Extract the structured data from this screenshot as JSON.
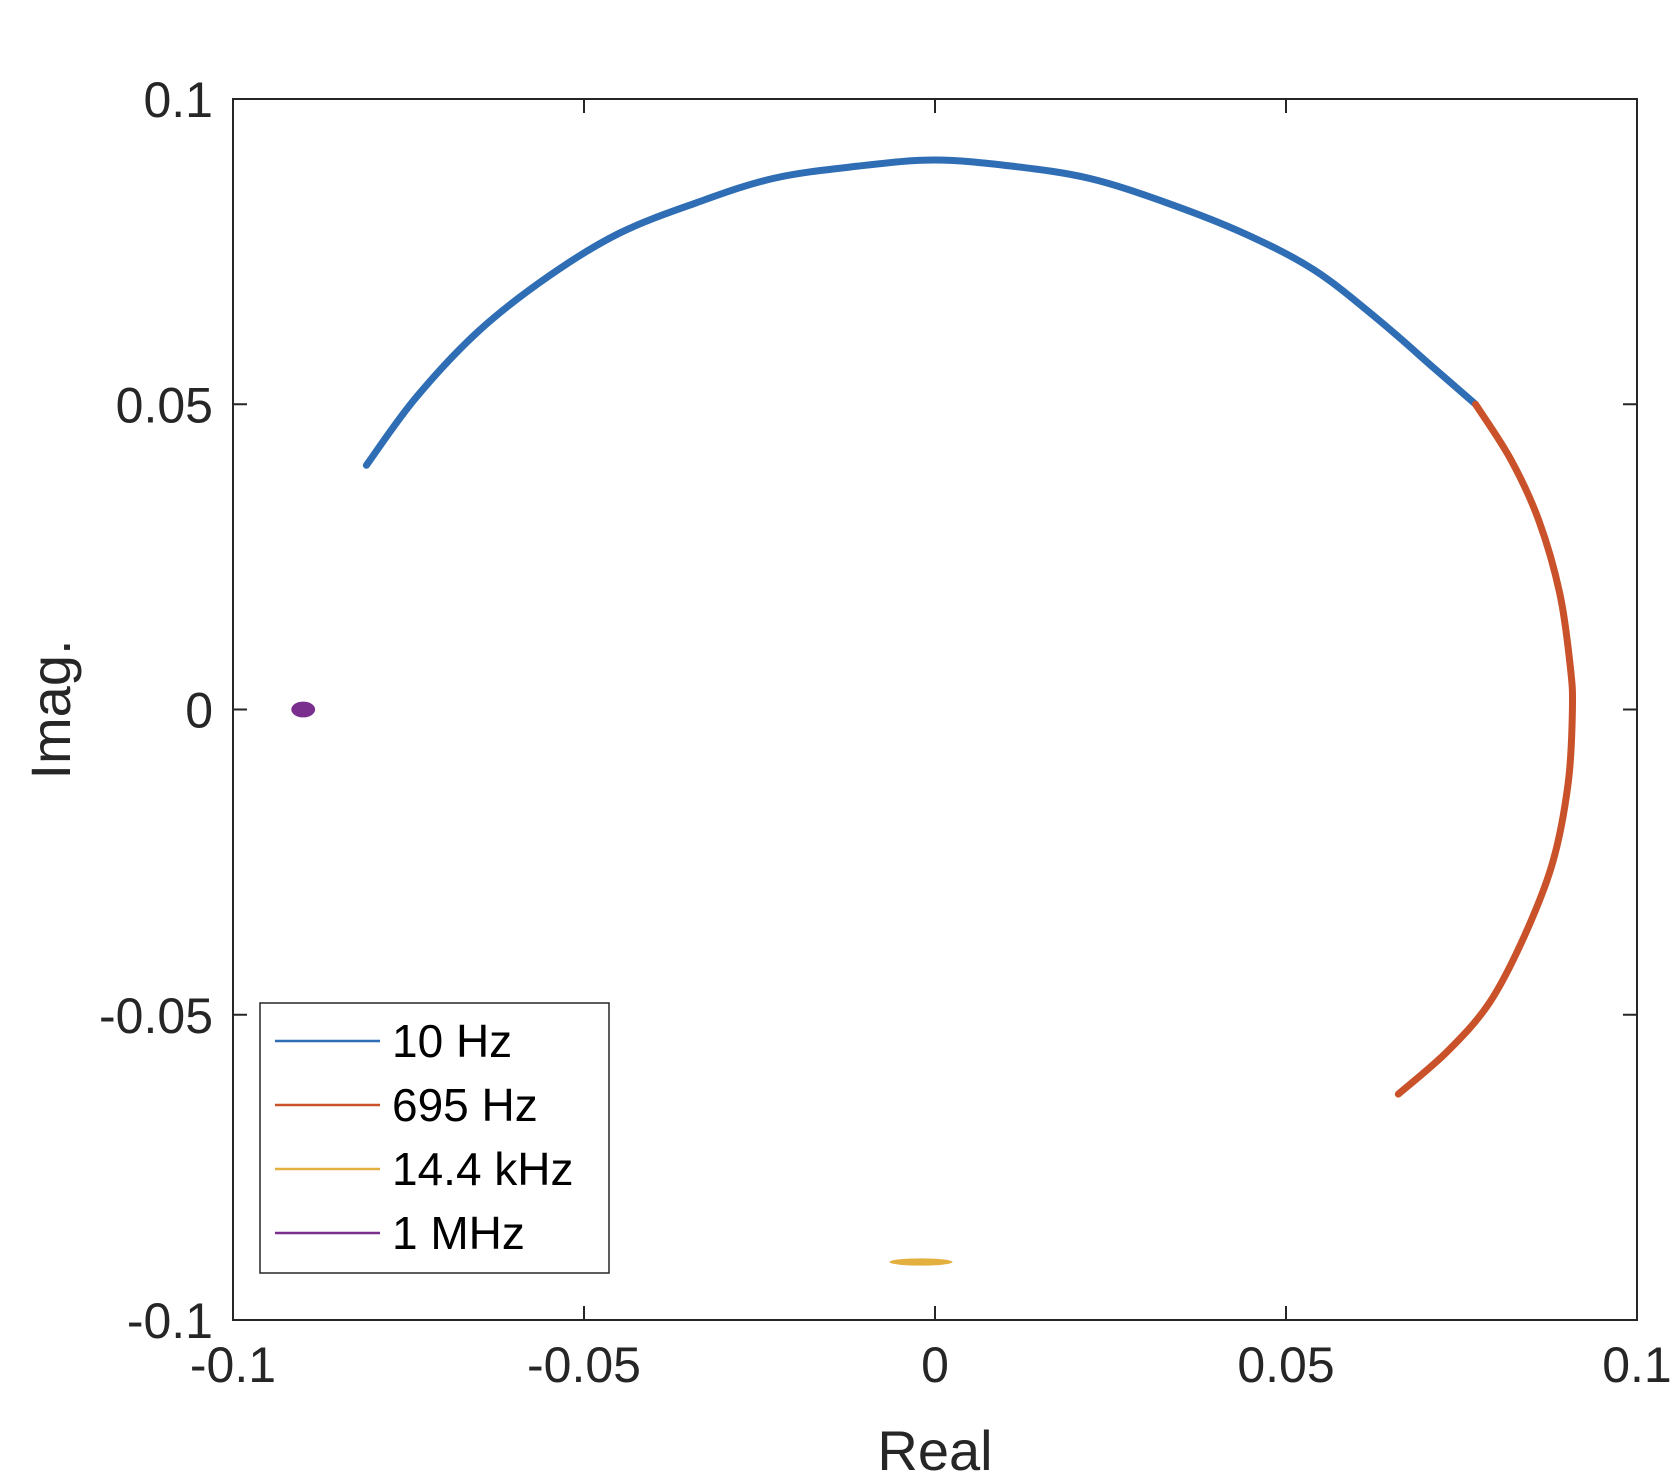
{
  "chart_data": {
    "type": "scatter",
    "title": "",
    "xlabel": "Real",
    "ylabel": "Imag.",
    "xlim": [
      -0.1,
      0.1
    ],
    "ylim": [
      -0.1,
      0.1
    ],
    "xticks": [
      -0.1,
      -0.05,
      0,
      0.05,
      0.1
    ],
    "yticks": [
      -0.1,
      -0.05,
      0,
      0.05,
      0.1
    ],
    "xtick_labels": [
      "-0.1",
      "-0.05",
      "0",
      "0.05",
      "0.1"
    ],
    "ytick_labels": [
      "-0.1",
      "-0.05",
      "0",
      "0.05",
      "0.1"
    ],
    "grid": false,
    "box": true,
    "legend_position": "bottom-left",
    "series": [
      {
        "name": "10 Hz",
        "color": "#2f6db4",
        "shape": "arc",
        "points": [
          [
            -0.081,
            0.04
          ],
          [
            -0.074,
            0.051
          ],
          [
            -0.065,
            0.062
          ],
          [
            -0.055,
            0.071
          ],
          [
            -0.045,
            0.078
          ],
          [
            -0.034,
            0.083
          ],
          [
            -0.023,
            0.087
          ],
          [
            -0.011,
            0.089
          ],
          [
            0.0,
            0.09
          ],
          [
            0.011,
            0.089
          ],
          [
            0.022,
            0.087
          ],
          [
            0.033,
            0.083
          ],
          [
            0.044,
            0.078
          ],
          [
            0.054,
            0.072
          ],
          [
            0.063,
            0.064
          ],
          [
            0.071,
            0.056
          ],
          [
            0.077,
            0.05
          ]
        ]
      },
      {
        "name": "695 Hz",
        "color": "#c9522a",
        "shape": "arc",
        "points": [
          [
            0.077,
            0.05
          ],
          [
            0.082,
            0.041
          ],
          [
            0.086,
            0.031
          ],
          [
            0.089,
            0.019
          ],
          [
            0.0905,
            0.007
          ],
          [
            0.0908,
            0.0
          ],
          [
            0.0902,
            -0.012
          ],
          [
            0.088,
            -0.025
          ],
          [
            0.084,
            -0.037
          ],
          [
            0.079,
            -0.048
          ],
          [
            0.073,
            -0.056
          ],
          [
            0.066,
            -0.063
          ]
        ]
      },
      {
        "name": "14.4 kHz",
        "color": "#e3b040",
        "shape": "blob",
        "center": [
          -0.002,
          -0.0905
        ],
        "rx": 0.0045,
        "ry": 0.0006
      },
      {
        "name": "1 MHz",
        "color": "#7a2f8f",
        "shape": "blob",
        "center": [
          -0.09,
          0.0
        ],
        "rx": 0.0017,
        "ry": 0.0013
      }
    ]
  }
}
